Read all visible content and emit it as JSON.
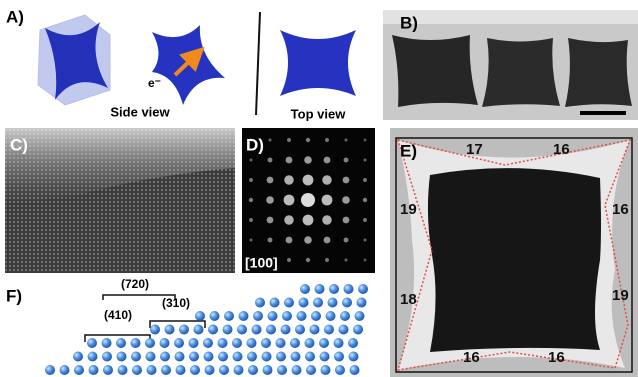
{
  "panel_a": {
    "label": "A)",
    "side_view": "Side view",
    "top_view": "Top view",
    "electron": "e⁻"
  },
  "panel_b": {
    "label": "B)"
  },
  "panel_c": {
    "label": "C)"
  },
  "panel_d": {
    "label": "D)",
    "zone_axis": "[100]"
  },
  "panel_e": {
    "label": "E)",
    "edge_counts": [
      "17",
      "16",
      "19",
      "16",
      "18",
      "19",
      "16",
      "16"
    ]
  },
  "panel_f": {
    "label": "F)",
    "facets": [
      "(720)",
      "(410)",
      "(310)"
    ]
  }
}
